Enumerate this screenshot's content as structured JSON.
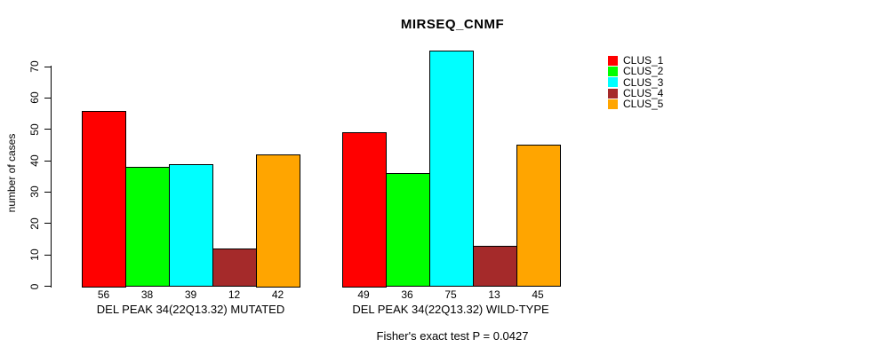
{
  "title": "MIRSEQ_CNMF",
  "caption": "Fisher's exact test P = 0.0427",
  "chart_data": {
    "type": "bar",
    "title": "MIRSEQ_CNMF",
    "ylabel": "number of cases",
    "xlabel": "",
    "ylim": [
      0,
      70
    ],
    "yticks": [
      0,
      10,
      20,
      30,
      40,
      50,
      60,
      70
    ],
    "grid": false,
    "legend_position": "right-outside",
    "series": [
      {
        "name": "CLUS_1",
        "color": "#FF0000"
      },
      {
        "name": "CLUS_2",
        "color": "#00FF00"
      },
      {
        "name": "CLUS_3",
        "color": "#00FFFF"
      },
      {
        "name": "CLUS_4",
        "color": "#A52A2A"
      },
      {
        "name": "CLUS_5",
        "color": "#FFA500"
      }
    ],
    "groups": [
      {
        "label": "DEL PEAK 34(22Q13.32) MUTATED",
        "values": [
          56,
          38,
          39,
          12,
          42
        ]
      },
      {
        "label": "DEL PEAK 34(22Q13.32) WILD-TYPE",
        "values": [
          49,
          36,
          75,
          13,
          45
        ]
      }
    ],
    "caption": "Fisher's exact test P = 0.0427"
  }
}
